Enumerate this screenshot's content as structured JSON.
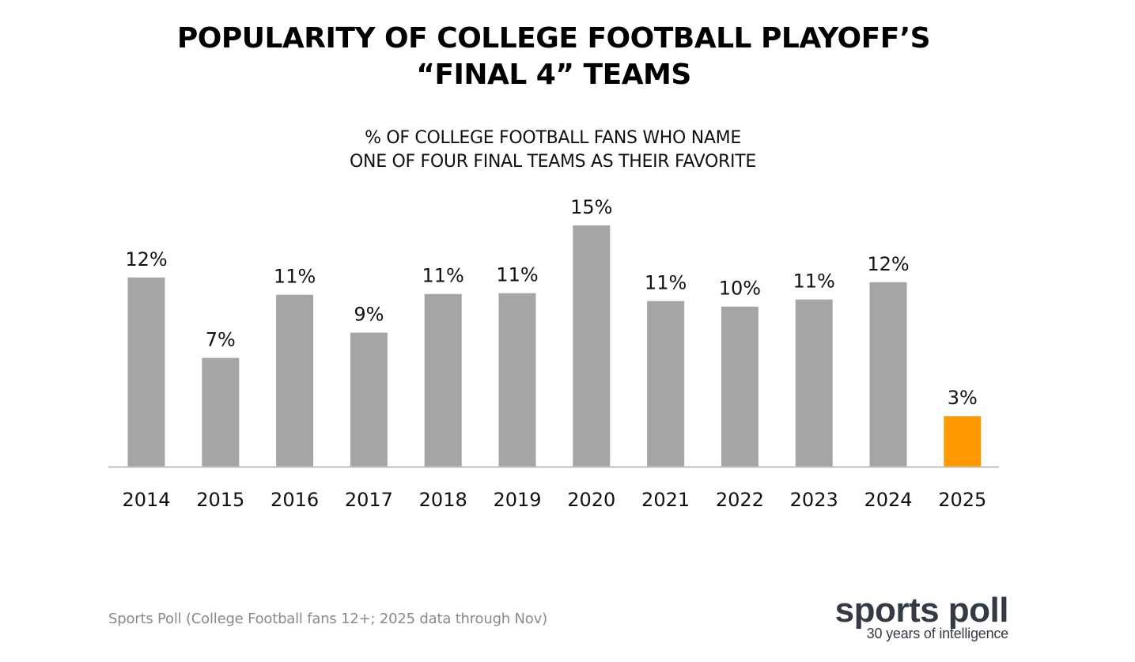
{
  "title": {
    "line1": "POPULARITY OF COLLEGE FOOTBALL PLAYOFF’S",
    "line2": "“FINAL 4” TEAMS"
  },
  "subtitle": {
    "line1": "% OF COLLEGE FOOTBALL FANS WHO NAME",
    "line2": "ONE OF FOUR FINAL TEAMS AS THEIR FAVORITE"
  },
  "chart_data": {
    "type": "bar",
    "categories": [
      "2014",
      "2015",
      "2016",
      "2017",
      "2018",
      "2019",
      "2020",
      "2021",
      "2022",
      "2023",
      "2024",
      "2025"
    ],
    "values": [
      12.0,
      6.9,
      10.9,
      8.5,
      10.95,
      11.0,
      15.3,
      10.5,
      10.15,
      10.6,
      11.7,
      3.2
    ],
    "data_labels": [
      "12%",
      "7%",
      "11%",
      "9%",
      "11%",
      "11%",
      "15%",
      "11%",
      "10%",
      "11%",
      "12%",
      "3%"
    ],
    "bar_colors": [
      "#a5a5a5",
      "#a5a5a5",
      "#a5a5a5",
      "#a5a5a5",
      "#a5a5a5",
      "#a5a5a5",
      "#a5a5a5",
      "#a5a5a5",
      "#a5a5a5",
      "#a5a5a5",
      "#a5a5a5",
      "#ff9900"
    ],
    "ylim": [
      0,
      15.3
    ],
    "grid": false,
    "legend": "none",
    "xlabel": "",
    "ylabel": ""
  },
  "footer": {
    "source": "Sports Poll (College Football fans 12+; 2025 data through Nov)"
  },
  "logo": {
    "name": "sports poll",
    "tagline": "30 years of intelligence"
  },
  "colors": {
    "bar_default": "#a5a5a5",
    "bar_highlight": "#ff9900",
    "axis_line": "#bfbfbf",
    "source_text": "#8a8a8a",
    "logo_text": "#333a44"
  }
}
